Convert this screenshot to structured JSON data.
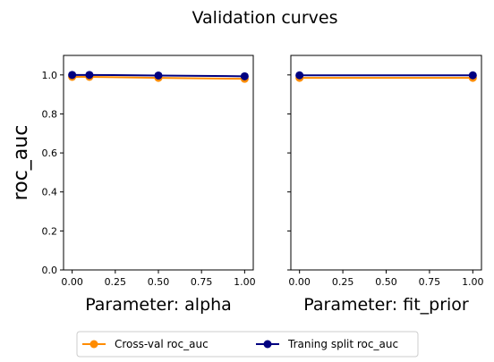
{
  "figure": {
    "title": "Validation curves"
  },
  "chart_data": [
    {
      "type": "line",
      "xlabel": "Parameter: alpha",
      "ylabel": "roc_auc",
      "x": [
        0.0,
        0.1,
        0.5,
        1.0
      ],
      "xlim": [
        -0.05,
        1.05
      ],
      "ylim": [
        0.0,
        1.1
      ],
      "xticks": [
        "0.00",
        "0.25",
        "0.50",
        "0.75",
        "1.00"
      ],
      "yticks": [
        "0.0",
        "0.2",
        "0.4",
        "0.6",
        "0.8",
        "1.0"
      ],
      "series": [
        {
          "name": "Cross-val roc_auc",
          "color": "#ff8c00",
          "values": [
            0.99,
            0.99,
            0.985,
            0.98
          ]
        },
        {
          "name": "Traning split roc_auc",
          "color": "#000080",
          "values": [
            1.0,
            1.0,
            0.997,
            0.993
          ]
        }
      ]
    },
    {
      "type": "line",
      "xlabel": "Parameter: fit_prior",
      "x": [
        0.0,
        1.0
      ],
      "xlim": [
        -0.05,
        1.05
      ],
      "ylim": [
        0.0,
        1.1
      ],
      "xticks": [
        "0.00",
        "0.25",
        "0.50",
        "0.75",
        "1.00"
      ],
      "series": [
        {
          "name": "Cross-val roc_auc",
          "color": "#ff8c00",
          "values": [
            0.985,
            0.985
          ]
        },
        {
          "name": "Traning split roc_auc",
          "color": "#000080",
          "values": [
            0.998,
            0.998
          ]
        }
      ]
    }
  ],
  "legend": {
    "placement": "bottom-center",
    "entries": [
      "Cross-val roc_auc",
      "Traning split roc_auc"
    ]
  }
}
